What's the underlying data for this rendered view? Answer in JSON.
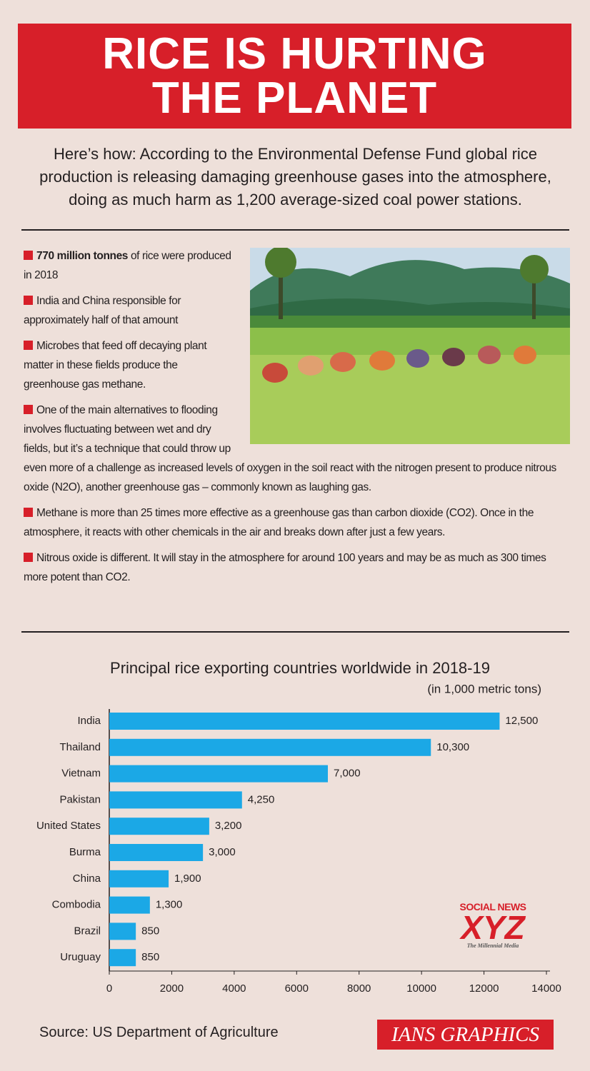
{
  "header": {
    "title_lines": [
      "RICE IS HURTING",
      "THE PLANET"
    ]
  },
  "intro": "Here’s how: According to the Environmental Defense Fund global rice production is releasing damaging greenhouse gases into the atmosphere, doing as much harm as 1,200 average-sized coal power stations.",
  "bullets": [
    {
      "bold": "770 million tonnes",
      "text": "of rice were produced in 2018"
    },
    {
      "text": "India and China responsible for approximately half of that amount"
    },
    {
      "text": "Microbes that feed off decaying plant matter in these fields produce the greenhouse gas methane."
    },
    {
      "text": "One of the main alternatives to flooding involves fluctuating between wet and dry fields, but it’s a technique that could throw up even more of a challenge as increased levels of oxygen in the soil react with the nitrogen present to produce nitrous oxide (N2O), another greenhouse gas – commonly known as laughing gas."
    },
    {
      "text": "Methane is more than 25 times more effective as a greenhouse gas than carbon dioxide (CO2). Once in the atmosphere, it reacts with other chemicals in the air and breaks down after just a few years."
    },
    {
      "text": "Nitrous oxide is different. It will stay in the atmosphere for around 100 years and may be as much as 300 times more potent than CO2."
    }
  ],
  "chart_data": {
    "type": "hbar",
    "title": "Principal rice exporting countries worldwide in 2018-19",
    "subtitle": "(in 1,000 metric tons)",
    "categories": [
      "India",
      "Thailand",
      "Vietnam",
      "Pakistan",
      "United States",
      "Burma",
      "China",
      "Combodia",
      "Brazil",
      "Uruguay"
    ],
    "values": [
      12500,
      10300,
      7000,
      4250,
      3200,
      3000,
      1900,
      1300,
      850,
      850
    ],
    "value_labels": [
      "12,500",
      "10,300",
      "7,000",
      "4,250",
      "3,200",
      "3,000",
      "1,900",
      "1,300",
      "850",
      "850"
    ],
    "color": "#1ba8e6",
    "xlim": [
      0,
      14000
    ],
    "xticks": [
      0,
      2000,
      4000,
      6000,
      8000,
      10000,
      12000,
      14000
    ]
  },
  "source": "Source: US Department of Agriculture",
  "credit": "IANS GRAPHICS",
  "watermark": {
    "top": "SOCIAL NEWS",
    "main": "XYZ",
    "tagline": "The Millennial Media"
  }
}
